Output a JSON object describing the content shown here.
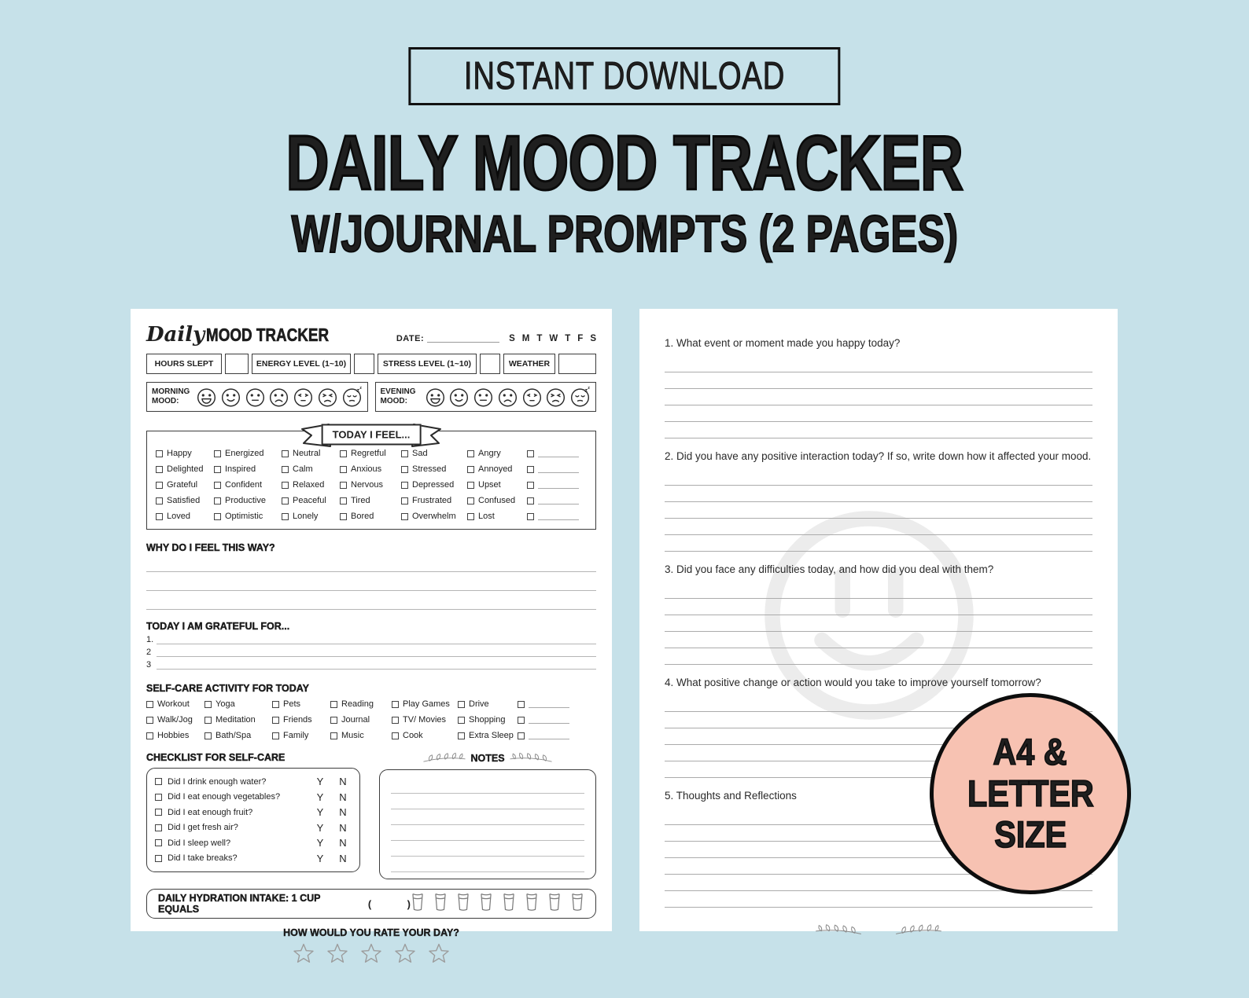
{
  "colors": {
    "background": "#c6e1e9",
    "badge_pink": "#f7c2b2",
    "ink": "#1f1f1f",
    "write_line": "#b5b5b5",
    "watermark": "#ececec"
  },
  "download_badge": {
    "label": "INSTANT DOWNLOAD"
  },
  "title": {
    "line1": "DAILY MOOD TRACKER",
    "line2": "W/JOURNAL PROMPTS (2 PAGES)"
  },
  "size_badge": {
    "line1": "A4 &",
    "line2": "LETTER",
    "line3": "SIZE"
  },
  "tracker": {
    "header": {
      "script_word": "Daily",
      "title": "MOOD TRACKER",
      "date_label": "DATE:",
      "days": [
        "S",
        "M",
        "T",
        "W",
        "T",
        "F",
        "S"
      ]
    },
    "info_fields": {
      "f1": "HOURS SLEPT",
      "f2": "ENERGY LEVEL (1~10)",
      "f3": "STRESS LEVEL (1~10)",
      "f4": "WEATHER"
    },
    "moods": {
      "morning_label": "MORNING MOOD:",
      "evening_label": "EVENING MOOD:",
      "faces": [
        "grin",
        "smile",
        "neutral",
        "frown",
        "worried",
        "angry",
        "sleepy"
      ]
    },
    "feelings": {
      "banner": "TODAY I FEEL...",
      "columns": [
        [
          "Happy",
          "Delighted",
          "Grateful",
          "Satisfied",
          "Loved"
        ],
        [
          "Energized",
          "Inspired",
          "Confident",
          "Productive",
          "Optimistic"
        ],
        [
          "Neutral",
          "Calm",
          "Relaxed",
          "Peaceful",
          "Lonely"
        ],
        [
          "Regretful",
          "Anxious",
          "Nervous",
          "Tired",
          "Bored"
        ],
        [
          "Sad",
          "Stressed",
          "Depressed",
          "Frustrated",
          "Overwhelm"
        ],
        [
          "Angry",
          "Annoyed",
          "Upset",
          "Confused",
          "Lost"
        ]
      ],
      "blank_rows": 5
    },
    "why": {
      "label": "WHY DO I FEEL THIS WAY?",
      "lines": 3
    },
    "grateful": {
      "label": "TODAY I AM GRATEFUL FOR...",
      "items": [
        "1.",
        "2",
        "3"
      ]
    },
    "selfcare": {
      "label": "SELF-CARE ACTIVITY FOR TODAY",
      "rows": [
        [
          "Workout",
          "Yoga",
          "Pets",
          "Reading",
          "Play Games",
          "Drive"
        ],
        [
          "Walk/Jog",
          "Meditation",
          "Friends",
          "Journal",
          "TV/ Movies",
          "Shopping"
        ],
        [
          "Hobbies",
          "Bath/Spa",
          "Family",
          "Music",
          "Cook",
          "Extra Sleep"
        ]
      ]
    },
    "checklist": {
      "label": "CHECKLIST FOR SELF-CARE",
      "yes": "Y",
      "no": "N",
      "items": [
        "Did I drink enough water?",
        "Did I eat enough vegetables?",
        "Did I eat enough fruit?",
        "Did I get fresh air?",
        "Did I sleep well?",
        "Did I take breaks?"
      ]
    },
    "notes": {
      "label": "NOTES",
      "lines": 6
    },
    "hydration": {
      "label": "DAILY HYDRATION INTAKE: 1 CUP  EQUALS",
      "open_paren": "(",
      "close_paren": ")",
      "cups": 8
    },
    "rating": {
      "label": "HOW  WOULD YOU RATE YOUR DAY?",
      "stars": 5
    }
  },
  "journal": {
    "questions": [
      {
        "text": "1. What event or moment made you happy today?",
        "lines": 5
      },
      {
        "text": "2. Did you have any positive interaction today? If so, write down how it affected your mood.",
        "lines": 5
      },
      {
        "text": "3. Did you face any difficulties today, and how did you deal with them?",
        "lines": 5
      },
      {
        "text": "4. What positive change or action would you take to improve yourself tomorrow?",
        "lines": 5
      },
      {
        "text": "5. Thoughts and Reflections",
        "lines": 6
      }
    ]
  }
}
